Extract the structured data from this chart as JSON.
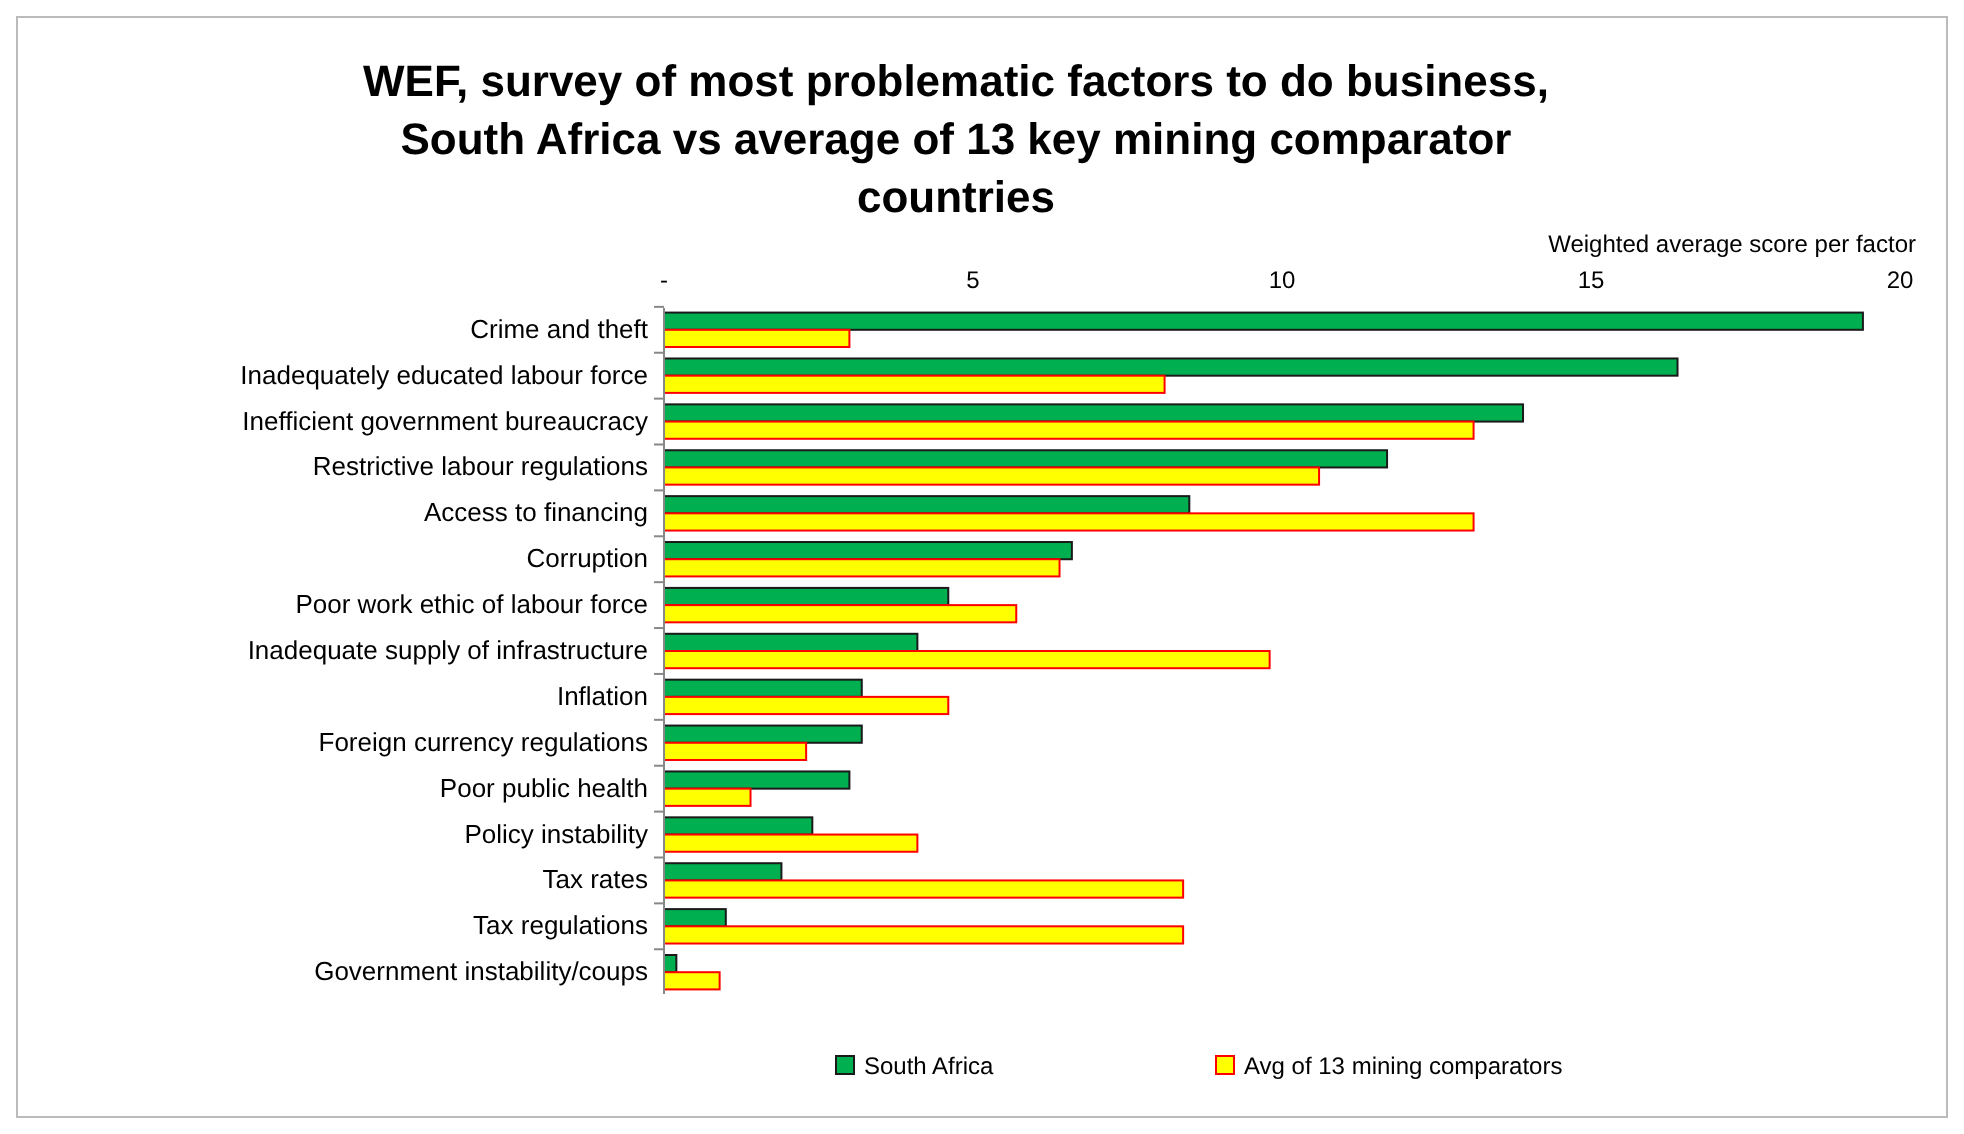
{
  "chart_data": {
    "type": "bar",
    "orientation": "horizontal",
    "title": "WEF, survey of most problematic factors to do business, South Africa vs average of 13 key mining comparator countries",
    "xlabel": "Weighted average score per factor",
    "categories": [
      "Crime and theft",
      "Inadequately educated labour force",
      "Inefficient government bureaucracy",
      "Restrictive labour regulations",
      "Access to financing",
      "Corruption",
      "Poor work ethic of labour force",
      "Inadequate supply of infrastructure",
      "Inflation",
      "Foreign currency regulations",
      "Poor public health",
      "Policy instability",
      "Tax rates",
      "Tax regulations",
      "Government instability/coups"
    ],
    "series": [
      {
        "name": "South Africa",
        "color": "#00b050",
        "values": [
          19.4,
          16.4,
          13.9,
          11.7,
          8.5,
          6.6,
          4.6,
          4.1,
          3.2,
          3.2,
          3.0,
          2.4,
          1.9,
          1.0,
          0.2
        ]
      },
      {
        "name": "Avg of 13 mining comparators",
        "color": "#ffff00",
        "values": [
          3.0,
          8.1,
          13.1,
          10.6,
          13.1,
          6.4,
          5.7,
          9.8,
          4.6,
          2.3,
          1.4,
          4.1,
          8.4,
          8.4,
          0.9
        ]
      }
    ],
    "xlim": [
      0,
      20
    ],
    "xticks": [
      {
        "value": 0,
        "label": "-"
      },
      5,
      10,
      15,
      20
    ],
    "grid": false,
    "legend": "bottom"
  }
}
